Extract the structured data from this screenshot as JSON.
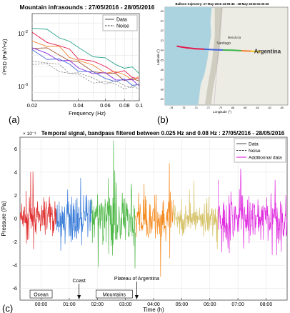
{
  "chart_data": [
    {
      "type": "line",
      "title": "Mountain infrasounds : 27/05/2016 - 28/05/2016",
      "xlabel": "Frequency (Hz)",
      "ylabel": "√PSD (Pa/√Hz)",
      "xscale": "log",
      "yscale": "log",
      "xlim": [
        0.02,
        0.1
      ],
      "ylim": [
        0.0007,
        0.03
      ],
      "xticks": [
        "0.02",
        "0.04",
        "0.06",
        "0.08",
        "0.1"
      ],
      "yticks": [
        "10",
        "10"
      ],
      "yticks_exp": [
        "-2",
        "-3"
      ],
      "legend": [
        "Data",
        "Noise"
      ],
      "legend_position": "top-right",
      "panel_label": "(a)",
      "x": [
        0.02,
        0.025,
        0.03,
        0.035,
        0.04,
        0.05,
        0.06,
        0.07,
        0.08,
        0.09,
        0.1
      ],
      "series": [
        {
          "type": "Data",
          "color": "#2ca58d",
          "values": [
            0.016,
            0.014,
            0.012,
            0.0085,
            0.0068,
            0.0052,
            0.004,
            0.0035,
            0.003,
            0.0027,
            0.0025
          ]
        },
        {
          "type": "Data",
          "color": "#e6194b",
          "values": [
            0.012,
            0.0095,
            0.0075,
            0.006,
            0.0048,
            0.0036,
            0.003,
            0.0026,
            0.0023,
            0.002,
            0.0019
          ]
        },
        {
          "type": "Data",
          "color": "#f58231",
          "values": [
            0.0095,
            0.0078,
            0.0066,
            0.005,
            0.004,
            0.003,
            0.0026,
            0.0023,
            0.0021,
            0.0019,
            0.0018
          ]
        },
        {
          "type": "Data",
          "color": "#a0522d",
          "values": [
            0.0075,
            0.0062,
            0.0052,
            0.0042,
            0.0034,
            0.0027,
            0.0023,
            0.0021,
            0.0019,
            0.0017,
            0.0016
          ]
        },
        {
          "type": "Data",
          "color": "#8a2be2",
          "values": [
            0.0065,
            0.0052,
            0.0044,
            0.0036,
            0.003,
            0.0024,
            0.0021,
            0.0019,
            0.0017,
            0.0016,
            0.0015
          ]
        },
        {
          "type": "Data",
          "color": "#4363d8",
          "values": [
            0.0058,
            0.0047,
            0.004,
            0.0033,
            0.0028,
            0.0022,
            0.0019,
            0.0017,
            0.0016,
            0.0015,
            0.0014
          ]
        },
        {
          "type": "Noise",
          "color": "#999999",
          "values": [
            0.0042,
            0.0036,
            0.0031,
            0.0026,
            0.0022,
            0.0018,
            0.0016,
            0.0015,
            0.0014,
            0.0013,
            0.0013
          ]
        },
        {
          "type": "Noise",
          "color": "#999999",
          "values": [
            0.0036,
            0.0031,
            0.0027,
            0.0023,
            0.002,
            0.0017,
            0.0015,
            0.0014,
            0.0013,
            0.0012,
            0.0012
          ]
        }
      ]
    },
    {
      "type": "map",
      "title": "Balloon trajectory: 27-May-2016 23:09:46 - 28-May-2016 06:30:25",
      "xlabel": "Longitude (°)",
      "ylabel": "Latitude (°)",
      "panel_label": "(b)",
      "places": [
        "Santiago",
        "Mendoza",
        "Argentina"
      ],
      "xticks": [
        "-78",
        "-76",
        "-74",
        "-72",
        "-70",
        "-68",
        "-66",
        "-64",
        "-62",
        "-60"
      ],
      "yticks": [
        "-30",
        "-31",
        "-32",
        "-33",
        "-34",
        "-35",
        "-36",
        "-37",
        "-38",
        "-39"
      ],
      "colors": {
        "sea": "#aad3df",
        "land": "#ecebe4",
        "mountains": "#c9c8b8"
      },
      "trajectory": {
        "lon": [
          -77.0,
          -75.5,
          -74.0,
          -72.5,
          -71.0,
          -69.5,
          -68.0,
          -66.5,
          -65.0,
          -63.5
        ],
        "lat": [
          -33.6,
          -33.75,
          -33.85,
          -33.9,
          -33.95,
          -33.98,
          -34.0,
          -34.05,
          -34.1,
          -34.15
        ],
        "colors": [
          "#e6194b",
          "#e6194b",
          "#e6194b",
          "#4363d8",
          "#4363d8",
          "#3cb44b",
          "#3cb44b",
          "#f58231",
          "#f0c419",
          "#e040fb"
        ]
      }
    },
    {
      "type": "line",
      "title": "Temporal signal, bandpass filtered between 0.025 Hz and 0.08 Hz : 27/05/2016 - 28/05/2016",
      "xlabel": "Time (h)",
      "ylabel": "Pressure (Pa)",
      "y_multiplier": "× 10⁻³",
      "xlim": [
        -0.75,
        8.75
      ],
      "ylim": [
        -7,
        7
      ],
      "xticks": [
        "00:00",
        "01:00",
        "02:00",
        "03:00",
        "04:00",
        "05:00",
        "06:00",
        "07:00",
        "08:00"
      ],
      "yticks": [
        "6",
        "4",
        "2",
        "0",
        "-2",
        "-4",
        "-6"
      ],
      "legend": [
        "Data",
        "Noise",
        "Additionnal data"
      ],
      "legend_position": "top-right",
      "panel_label": "(c)",
      "segments": [
        {
          "color": "#e03131",
          "t_start": -0.75,
          "t_end": 0.55,
          "amplitude": 1.5,
          "peak": 4.0
        },
        {
          "color": "#3b7dd8",
          "t_start": 0.55,
          "t_end": 1.8,
          "amplitude": 1.6,
          "peak": 3.5
        },
        {
          "color": "#4fb848",
          "t_start": 1.8,
          "t_end": 3.35,
          "amplitude": 2.4,
          "peak": 6.7
        },
        {
          "color": "#f58a1f",
          "t_start": 3.35,
          "t_end": 4.7,
          "amplitude": 1.7,
          "peak": -5.0
        },
        {
          "color": "#d6c36a",
          "t_start": 4.7,
          "t_end": 6.3,
          "amplitude": 1.2,
          "peak": 2.5
        },
        {
          "color": "#e02ee0",
          "t_start": 6.3,
          "t_end": 8.75,
          "amplitude": 2.0,
          "peak": 4.3
        }
      ],
      "annotations": [
        {
          "text": "Ocean",
          "time": 0.0,
          "boxed": true
        },
        {
          "text": "Coast",
          "time": 1.35,
          "arrow": true
        },
        {
          "text": "Mountains",
          "time": 2.6,
          "boxed": true
        },
        {
          "text": "Plateau of Argentina",
          "time": 3.4,
          "arrow": true
        }
      ]
    }
  ]
}
